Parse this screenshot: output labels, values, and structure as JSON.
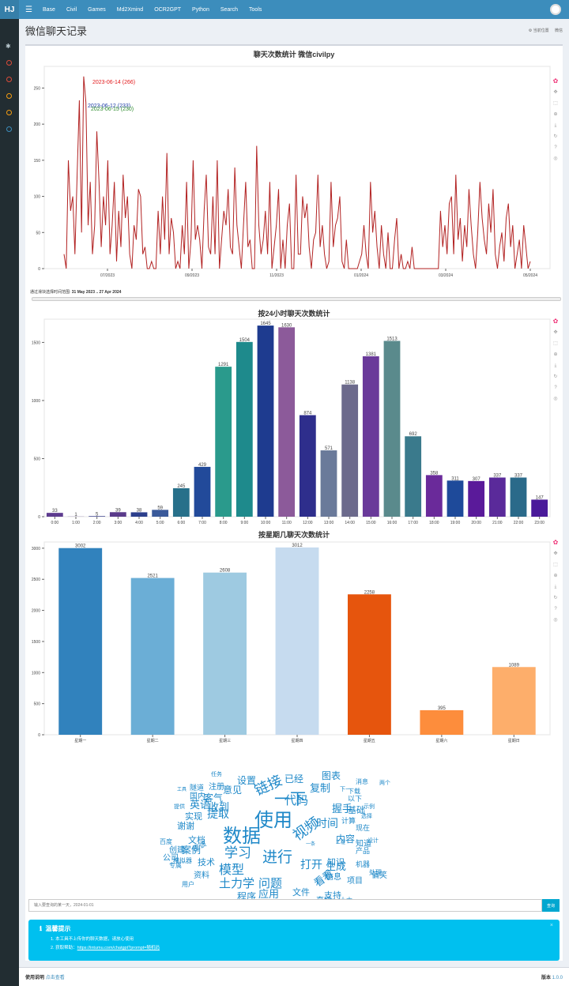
{
  "topbar": {
    "brand": "HJ",
    "nav": [
      "Base",
      "Civil",
      "Games",
      "Md2Xmind",
      "OCR2GPT",
      "Python",
      "Search",
      "Tools"
    ]
  },
  "header": {
    "title": "微信聊天记录",
    "crumb_current": "当前位置",
    "crumb_page": "微信"
  },
  "chart1": {
    "title": "聊天次数统计 微信civilpy",
    "range_label": "通过滑块选择时间范围:",
    "range_value": "31 May 2023 .. 27 Apr 2024",
    "annotations": [
      {
        "text": "2023-06-14  (266)",
        "color": "#e31a1c"
      },
      {
        "text": "2023-06-12  (233)",
        "color": "#1f3ea8"
      },
      {
        "text": "2023-06-15  (230)",
        "color": "#2e8b2e"
      }
    ]
  },
  "chart2": {
    "title": "按24小时聊天次数统计"
  },
  "chart3": {
    "title": "按星期几聊天次数统计"
  },
  "search": {
    "placeholder": "输入要查询的某一天，2024-01-01",
    "button": "查询"
  },
  "tips": {
    "title": "温馨提示",
    "line1": "1. 本工具不上传你的聊天数据，请放心使用",
    "line2_prefix": "2. 获取帮助：",
    "line2_link": "https://intumu.com/chatgpt?prompt=随机码"
  },
  "footer": {
    "usage": "使用说明",
    "link": "点击查看",
    "version_label": "版本",
    "version": "1.0.0"
  },
  "chart_data": [
    {
      "type": "line",
      "title": "聊天次数统计 微信civilpy",
      "x_ticks": [
        "07/2023",
        "09/2023",
        "11/2023",
        "01/2024",
        "03/2024",
        "05/2024"
      ],
      "y_ticks": [
        0,
        50,
        100,
        150,
        200,
        250
      ],
      "ylim": [
        0,
        280
      ],
      "x_range": [
        "2023-05-31",
        "2024-04-27"
      ],
      "peaks": [
        {
          "date": "2023-06-14",
          "value": 266
        },
        {
          "date": "2023-06-12",
          "value": 233
        },
        {
          "date": "2023-06-15",
          "value": 230
        }
      ],
      "color": "#b22222",
      "values": [
        20,
        0,
        150,
        80,
        100,
        20,
        130,
        233,
        50,
        266,
        230,
        60,
        120,
        20,
        60,
        190,
        120,
        30,
        100,
        60,
        150,
        20,
        60,
        120,
        10,
        80,
        30,
        130,
        70,
        100,
        20,
        0,
        60,
        40,
        110,
        100,
        20,
        30,
        0,
        0,
        10,
        0,
        0,
        80,
        20,
        100,
        40,
        160,
        20,
        70,
        50,
        0,
        10,
        0,
        60,
        20,
        120,
        0,
        40,
        150,
        40,
        60,
        40,
        0,
        80,
        130,
        30,
        20,
        100,
        20,
        150,
        0,
        40,
        80,
        60,
        110,
        30,
        20,
        140,
        60,
        30,
        0,
        60,
        120,
        30,
        40,
        0,
        0,
        170,
        60,
        20,
        40,
        80,
        20,
        120,
        0,
        30,
        60,
        110,
        0,
        40,
        0,
        60,
        90,
        0,
        0,
        130,
        20,
        20,
        100,
        70,
        90,
        30,
        0,
        40,
        50,
        130,
        30,
        60,
        20,
        0,
        10,
        120,
        30,
        60,
        70,
        100,
        10,
        0,
        40,
        0,
        0,
        0,
        0,
        0,
        10,
        20,
        60,
        20,
        0,
        120,
        50,
        80,
        30,
        0,
        60,
        20,
        0,
        50,
        0,
        0,
        40,
        70,
        0,
        20,
        0,
        0,
        10,
        0,
        30,
        0,
        0,
        0,
        0,
        0,
        0,
        0,
        0,
        0,
        0,
        0,
        0,
        80,
        30,
        60,
        20,
        90,
        100,
        20,
        130,
        40,
        70,
        10,
        60,
        30,
        110,
        60,
        20,
        0,
        50,
        120,
        70,
        40,
        20,
        90,
        50,
        110,
        20,
        0,
        30,
        50,
        10,
        70,
        90,
        30,
        60,
        0,
        20,
        40,
        0,
        60,
        30,
        0,
        10
      ]
    },
    {
      "type": "bar",
      "title": "按24小时聊天次数统计",
      "categories": [
        "0:00",
        "1:00",
        "2:00",
        "3:00",
        "4:00",
        "5:00",
        "6:00",
        "7:00",
        "8:00",
        "9:00",
        "10:00",
        "11:00",
        "12:00",
        "13:00",
        "14:00",
        "15:00",
        "16:00",
        "17:00",
        "18:00",
        "19:00",
        "20:00",
        "21:00",
        "22:00",
        "23:00"
      ],
      "values": [
        33,
        1,
        5,
        39,
        38,
        59,
        245,
        429,
        1291,
        1504,
        1645,
        1630,
        874,
        571,
        1138,
        1381,
        1513,
        692,
        358,
        311,
        307,
        337,
        337,
        147
      ],
      "colors": [
        "#5e3c8f",
        "#4b2a7a",
        "#3a3f8c",
        "#5a3a8a",
        "#2c3f8c",
        "#3a5a9a",
        "#27708a",
        "#224a9a",
        "#2a9a8c",
        "#1e8a8c",
        "#1e3b8f",
        "#8c5a9a",
        "#2e2e8c",
        "#6a7a9a",
        "#6c6a8c",
        "#6a3a9a",
        "#5a8a8c",
        "#3a7a8c",
        "#6a2a9a",
        "#1e4a9a",
        "#5a1a9a",
        "#5a2a9a",
        "#2a6a8a",
        "#4a1a9a"
      ],
      "yticks": [
        0,
        500,
        1000,
        1500
      ],
      "ylim": [
        0,
        1700
      ]
    },
    {
      "type": "bar",
      "title": "按星期几聊天次数统计",
      "categories": [
        "星期一",
        "星期二",
        "星期三",
        "星期四",
        "星期五",
        "星期六",
        "星期日"
      ],
      "values": [
        3002,
        2521,
        2608,
        3012,
        2258,
        395,
        1089
      ],
      "colors": [
        "#3182bd",
        "#6baed6",
        "#9ecae1",
        "#c6dbef",
        "#e6550d",
        "#fd8d3c",
        "#fdae6b"
      ],
      "yticks": [
        0,
        500,
        1000,
        1500,
        2000,
        2500,
        3000
      ],
      "ylim": [
        0,
        3100
      ]
    }
  ],
  "wordcloud": {
    "words": [
      "数据",
      "使用",
      "一下",
      "链接",
      "进行",
      "视频",
      "学习",
      "模型",
      "土力学",
      "问题",
      "提取",
      "代码",
      "握手",
      "基础",
      "时间",
      "打开",
      "看看",
      "文件",
      "应用",
      "程序",
      "支持",
      "生成",
      "内容",
      "知识",
      "项目",
      "信息",
      "复制",
      "图表",
      "设置",
      "已经",
      "意见",
      "客气",
      "注册",
      "隧道",
      "工具",
      "英语",
      "收到",
      "实现",
      "谢谢",
      "文档",
      "案例",
      "技术",
      "资料",
      "用户",
      "创建",
      "模拟器",
      "百度",
      "公司",
      "应该",
      "专属",
      "直接",
      "土木",
      "机器",
      "偏笑",
      "处理",
      "产品",
      "知道",
      "设计",
      "现在",
      "选择",
      "示例",
      "计算",
      "以下",
      "下载",
      "消息",
      "两个",
      "工程",
      "一条",
      "国内",
      "下一",
      "提供",
      "任务"
    ]
  }
}
